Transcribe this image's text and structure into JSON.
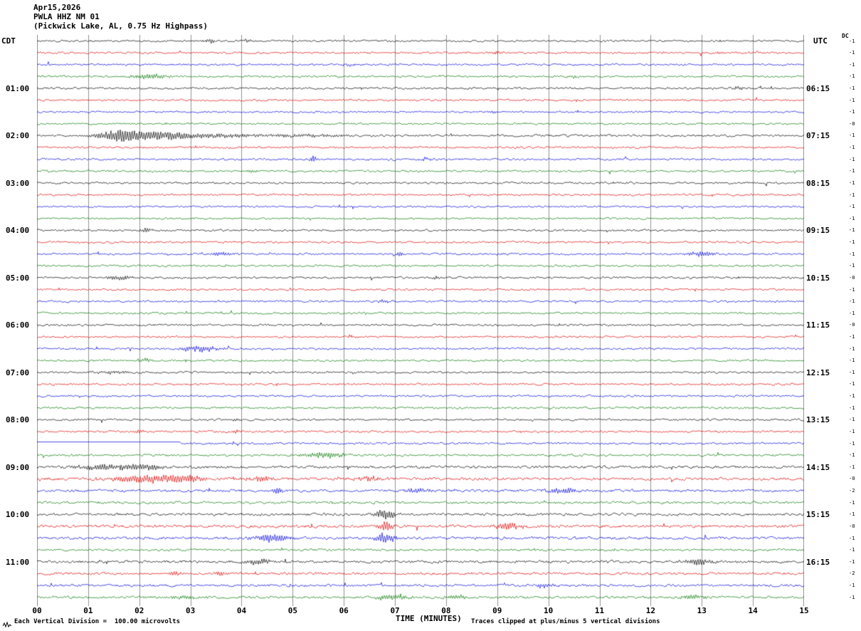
{
  "header": {
    "date": "Apr15,2026",
    "station": "PWLA HHZ NM 01",
    "subtitle": "(Pickwick Lake, AL, 0.75 Hz Highpass)"
  },
  "left_axis": {
    "tz": "CDT",
    "labels": [
      {
        "row": 4,
        "text": "01:00"
      },
      {
        "row": 8,
        "text": "02:00"
      },
      {
        "row": 12,
        "text": "03:00"
      },
      {
        "row": 16,
        "text": "04:00"
      },
      {
        "row": 20,
        "text": "05:00"
      },
      {
        "row": 24,
        "text": "06:00"
      },
      {
        "row": 28,
        "text": "07:00"
      },
      {
        "row": 32,
        "text": "08:00"
      },
      {
        "row": 36,
        "text": "09:00"
      },
      {
        "row": 40,
        "text": "10:00"
      },
      {
        "row": 44,
        "text": "11:00"
      }
    ]
  },
  "right_axis": {
    "tz": "UTC",
    "labels": [
      {
        "row": 4,
        "text": "06:15"
      },
      {
        "row": 8,
        "text": "07:15"
      },
      {
        "row": 12,
        "text": "08:15"
      },
      {
        "row": 16,
        "text": "09:15"
      },
      {
        "row": 20,
        "text": "10:15"
      },
      {
        "row": 24,
        "text": "11:15"
      },
      {
        "row": 28,
        "text": "12:15"
      },
      {
        "row": 32,
        "text": "13:15"
      },
      {
        "row": 36,
        "text": "14:15"
      },
      {
        "row": 40,
        "text": "15:15"
      },
      {
        "row": 44,
        "text": "16:15"
      }
    ]
  },
  "dc_column": {
    "title": "DC",
    "values": [
      "-1",
      "-1",
      "-1",
      "-1",
      "-1",
      "-1",
      "-1",
      "-0",
      "-1",
      "-1",
      "-1",
      "-1",
      "-1",
      "-1",
      "-1",
      "-1",
      "-1",
      "-1",
      "-1",
      "-1",
      "-0",
      "-1",
      "-1",
      "-1",
      "-0",
      "-1",
      "-1",
      "-1",
      "-1",
      "-1",
      "-1",
      "-1",
      "-1",
      "-1",
      "-1",
      "-1",
      "-1",
      "-0",
      "-2",
      "-1",
      "-1",
      "-0",
      "-1",
      "-1",
      "-1",
      "-2",
      "-1",
      "-1"
    ]
  },
  "x_axis": {
    "ticks": [
      "00",
      "01",
      "02",
      "03",
      "04",
      "05",
      "06",
      "07",
      "08",
      "09",
      "10",
      "11",
      "12",
      "13",
      "14",
      "15"
    ],
    "title": "TIME (MINUTES)"
  },
  "footer": {
    "left": "Each Vertical Division =  100.00 microvolts",
    "right": "Traces clipped at plus/minus 5 vertical divisions"
  },
  "chart_data": {
    "type": "line",
    "description": "12-hour helicorder seismogram, 48 traces of 15 minutes each, 4 traces per hour, colors cycling black/red/blue/green. Events listed as t=minutes, a=amplitude(px), w=width(min).",
    "minutes": 15,
    "x_range": [
      0,
      15
    ],
    "rows_per_hour": 4,
    "clip_divisions": 5,
    "microvolts_per_division": 100,
    "colors": {
      "black": "#000000",
      "red": "#e00000",
      "blue": "#0000dd",
      "green": "#007700"
    },
    "grid_color": "#909090",
    "rows": [
      {
        "t": "00:00",
        "c": "black",
        "n": 1.0,
        "ev": [
          {
            "t": 3.4,
            "a": 3,
            "w": 0.1
          },
          {
            "t": 4.1,
            "a": 2.5,
            "w": 0.08
          }
        ]
      },
      {
        "t": "00:15",
        "c": "red",
        "n": 1.0,
        "ev": [
          {
            "t": 9.0,
            "a": 2,
            "w": 0.1
          },
          {
            "t": 13.3,
            "a": 2,
            "w": 0.1
          }
        ]
      },
      {
        "t": "00:30",
        "c": "blue",
        "n": 1.0,
        "ev": [
          {
            "t": 6.1,
            "a": 2.5,
            "w": 0.08
          }
        ]
      },
      {
        "t": "00:45",
        "c": "green",
        "n": 1.0,
        "ev": [
          {
            "t": 2.2,
            "a": 3.5,
            "w": 0.25
          },
          {
            "t": 10.5,
            "a": 2,
            "w": 0.08
          }
        ]
      },
      {
        "t": "01:00",
        "c": "black",
        "n": 1.0,
        "ev": [
          {
            "t": 13.7,
            "a": 2.5,
            "w": 0.1
          }
        ]
      },
      {
        "t": "01:15",
        "c": "red",
        "n": 1.0,
        "ev": []
      },
      {
        "t": "01:30",
        "c": "blue",
        "n": 0.9,
        "ev": [
          {
            "t": 8.9,
            "a": 2,
            "w": 0.1
          }
        ]
      },
      {
        "t": "01:45",
        "c": "green",
        "n": 0.9,
        "ev": []
      },
      {
        "t": "02:00",
        "c": "black",
        "n": 1.1,
        "ev": [
          {
            "t": 1.7,
            "a": 9,
            "w": 0.35
          },
          {
            "t": 2.4,
            "a": 6,
            "w": 0.5
          },
          {
            "t": 3.5,
            "a": 3,
            "w": 0.6
          },
          {
            "t": 5.2,
            "a": 2,
            "w": 0.5
          }
        ]
      },
      {
        "t": "02:15",
        "c": "red",
        "n": 1.0,
        "ev": []
      },
      {
        "t": "02:30",
        "c": "blue",
        "n": 1.0,
        "ev": [
          {
            "t": 5.4,
            "a": 5,
            "w": 0.06
          },
          {
            "t": 7.6,
            "a": 2.5,
            "w": 0.1
          }
        ]
      },
      {
        "t": "02:45",
        "c": "green",
        "n": 1.0,
        "ev": [
          {
            "t": 4.2,
            "a": 2,
            "w": 0.1
          }
        ]
      },
      {
        "t": "03:00",
        "c": "black",
        "n": 1.0,
        "ev": []
      },
      {
        "t": "03:15",
        "c": "red",
        "n": 1.0,
        "ev": []
      },
      {
        "t": "03:30",
        "c": "blue",
        "n": 0.9,
        "ev": []
      },
      {
        "t": "03:45",
        "c": "green",
        "n": 0.9,
        "ev": []
      },
      {
        "t": "04:00",
        "c": "black",
        "n": 1.0,
        "ev": [
          {
            "t": 2.1,
            "a": 3,
            "w": 0.1
          }
        ]
      },
      {
        "t": "04:15",
        "c": "red",
        "n": 1.0,
        "ev": []
      },
      {
        "t": "04:30",
        "c": "blue",
        "n": 1.0,
        "ev": [
          {
            "t": 3.6,
            "a": 3,
            "w": 0.15
          },
          {
            "t": 7.1,
            "a": 4,
            "w": 0.05
          },
          {
            "t": 13.0,
            "a": 3.5,
            "w": 0.2
          }
        ]
      },
      {
        "t": "04:45",
        "c": "green",
        "n": 1.0,
        "ev": []
      },
      {
        "t": "05:00",
        "c": "black",
        "n": 1.0,
        "ev": [
          {
            "t": 1.6,
            "a": 3,
            "w": 0.2
          },
          {
            "t": 7.8,
            "a": 2.5,
            "w": 0.05
          }
        ]
      },
      {
        "t": "05:15",
        "c": "red",
        "n": 1.0,
        "ev": []
      },
      {
        "t": "05:30",
        "c": "blue",
        "n": 1.0,
        "ev": [
          {
            "t": 6.8,
            "a": 2.5,
            "w": 0.08
          }
        ]
      },
      {
        "t": "05:45",
        "c": "green",
        "n": 1.0,
        "ev": []
      },
      {
        "t": "06:00",
        "c": "black",
        "n": 1.0,
        "ev": []
      },
      {
        "t": "06:15",
        "c": "red",
        "n": 1.0,
        "ev": []
      },
      {
        "t": "06:30",
        "c": "blue",
        "n": 1.0,
        "ev": [
          {
            "t": 3.2,
            "a": 4,
            "w": 0.3
          }
        ]
      },
      {
        "t": "06:45",
        "c": "green",
        "n": 1.0,
        "ev": [
          {
            "t": 2.1,
            "a": 3,
            "w": 0.1
          }
        ]
      },
      {
        "t": "07:00",
        "c": "black",
        "n": 1.0,
        "ev": [
          {
            "t": 1.5,
            "a": 2,
            "w": 0.3
          }
        ]
      },
      {
        "t": "07:15",
        "c": "red",
        "n": 1.0,
        "ev": []
      },
      {
        "t": "07:30",
        "c": "blue",
        "n": 1.0,
        "ev": []
      },
      {
        "t": "07:45",
        "c": "green",
        "n": 1.0,
        "ev": []
      },
      {
        "t": "08:00",
        "c": "black",
        "n": 1.0,
        "ev": [
          {
            "t": 3.9,
            "a": 2.5,
            "w": 0.05
          }
        ]
      },
      {
        "t": "08:15",
        "c": "red",
        "n": 1.0,
        "ev": [
          {
            "t": 2.0,
            "a": 3,
            "w": 0.06
          },
          {
            "t": 3.9,
            "a": 2.5,
            "w": 0.05
          }
        ]
      },
      {
        "t": "08:30",
        "c": "blue",
        "n": 1.0,
        "flat": 2.8,
        "ev": []
      },
      {
        "t": "08:45",
        "c": "green",
        "n": 1.1,
        "ev": [
          {
            "t": 5.6,
            "a": 4,
            "w": 0.3
          }
        ]
      },
      {
        "t": "09:00",
        "c": "black",
        "n": 1.3,
        "ev": [
          {
            "t": 1.3,
            "a": 4,
            "w": 0.4
          },
          {
            "t": 2.1,
            "a": 4,
            "w": 0.3
          }
        ]
      },
      {
        "t": "09:15",
        "c": "red",
        "n": 1.4,
        "ev": [
          {
            "t": 2.2,
            "a": 6,
            "w": 0.5
          },
          {
            "t": 2.9,
            "a": 4.5,
            "w": 0.3
          },
          {
            "t": 4.4,
            "a": 4,
            "w": 0.15
          },
          {
            "t": 6.5,
            "a": 3.5,
            "w": 0.2
          }
        ]
      },
      {
        "t": "09:30",
        "c": "blue",
        "n": 1.3,
        "ev": [
          {
            "t": 4.7,
            "a": 6,
            "w": 0.08
          },
          {
            "t": 7.4,
            "a": 3,
            "w": 0.2
          },
          {
            "t": 10.3,
            "a": 4,
            "w": 0.25
          }
        ]
      },
      {
        "t": "09:45",
        "c": "green",
        "n": 1.2,
        "ev": []
      },
      {
        "t": "10:00",
        "c": "black",
        "n": 1.3,
        "ev": [
          {
            "t": 6.8,
            "a": 7,
            "w": 0.15
          }
        ]
      },
      {
        "t": "10:15",
        "c": "red",
        "n": 1.4,
        "ev": [
          {
            "t": 6.8,
            "a": 8,
            "w": 0.1
          },
          {
            "t": 9.2,
            "a": 5,
            "w": 0.2
          }
        ]
      },
      {
        "t": "10:30",
        "c": "blue",
        "n": 1.3,
        "ev": [
          {
            "t": 4.6,
            "a": 6,
            "w": 0.25
          },
          {
            "t": 6.8,
            "a": 7,
            "w": 0.15
          }
        ]
      },
      {
        "t": "10:45",
        "c": "green",
        "n": 1.1,
        "ev": []
      },
      {
        "t": "11:00",
        "c": "black",
        "n": 1.3,
        "ev": [
          {
            "t": 4.3,
            "a": 4,
            "w": 0.2
          },
          {
            "t": 12.9,
            "a": 5,
            "w": 0.2
          }
        ]
      },
      {
        "t": "11:15",
        "c": "red",
        "n": 1.2,
        "ev": [
          {
            "t": 2.7,
            "a": 4,
            "w": 0.08
          },
          {
            "t": 3.6,
            "a": 3,
            "w": 0.08
          }
        ]
      },
      {
        "t": "11:30",
        "c": "blue",
        "n": 1.2,
        "ev": [
          {
            "t": 9.9,
            "a": 3,
            "w": 0.15
          }
        ]
      },
      {
        "t": "11:45",
        "c": "green",
        "n": 1.2,
        "ev": [
          {
            "t": 2.9,
            "a": 3,
            "w": 0.2
          },
          {
            "t": 6.9,
            "a": 4,
            "w": 0.25
          },
          {
            "t": 8.2,
            "a": 3,
            "w": 0.15
          },
          {
            "t": 12.8,
            "a": 4,
            "w": 0.2
          }
        ]
      }
    ]
  }
}
